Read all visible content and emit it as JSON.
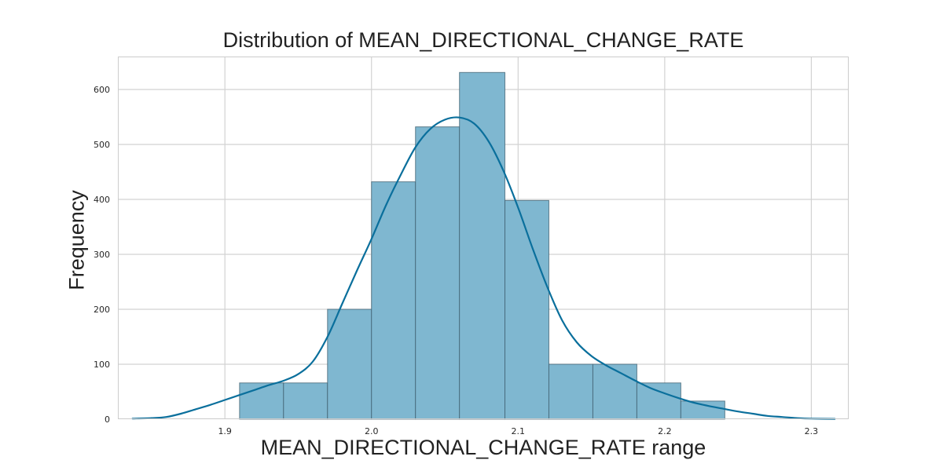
{
  "chart_data": {
    "type": "bar",
    "title": "Distribution of MEAN_DIRECTIONAL_CHANGE_RATE",
    "xlabel": "MEAN_DIRECTIONAL_CHANGE_RATE range",
    "ylabel": "Frequency",
    "xlim": [
      1.827,
      2.3255
    ],
    "ylim": [
      0,
      660
    ],
    "x_ticks": [
      1.9,
      2.0,
      2.1,
      2.2,
      2.3
    ],
    "x_tick_labels": [
      "1.9",
      "2.0",
      "2.1",
      "2.2",
      "2.3"
    ],
    "y_ticks": [
      0,
      100,
      200,
      300,
      400,
      500,
      600
    ],
    "y_tick_labels": [
      "0",
      "100",
      "200",
      "300",
      "400",
      "500",
      "600"
    ],
    "grid": true,
    "bins": [
      {
        "start": 1.91,
        "end": 1.94,
        "count": 66
      },
      {
        "start": 1.94,
        "end": 1.97,
        "count": 66
      },
      {
        "start": 1.97,
        "end": 2.0,
        "count": 200
      },
      {
        "start": 2.0,
        "end": 2.03,
        "count": 432
      },
      {
        "start": 2.03,
        "end": 2.06,
        "count": 532
      },
      {
        "start": 2.06,
        "end": 2.091,
        "count": 631
      },
      {
        "start": 2.091,
        "end": 2.121,
        "count": 398
      },
      {
        "start": 2.121,
        "end": 2.151,
        "count": 100
      },
      {
        "start": 2.151,
        "end": 2.181,
        "count": 100
      },
      {
        "start": 2.181,
        "end": 2.211,
        "count": 66
      },
      {
        "start": 2.211,
        "end": 2.241,
        "count": 33
      }
    ],
    "kde": {
      "x": [
        1.837,
        1.85,
        1.86,
        1.87,
        1.88,
        1.89,
        1.9,
        1.91,
        1.92,
        1.93,
        1.94,
        1.95,
        1.96,
        1.97,
        1.98,
        1.99,
        2.0,
        2.01,
        2.02,
        2.03,
        2.04,
        2.05,
        2.06,
        2.07,
        2.08,
        2.09,
        2.1,
        2.11,
        2.12,
        2.13,
        2.14,
        2.15,
        2.16,
        2.17,
        2.18,
        2.19,
        2.2,
        2.21,
        2.22,
        2.23,
        2.24,
        2.25,
        2.26,
        2.27,
        2.28,
        2.29,
        2.3,
        2.316
      ],
      "y": [
        1,
        2,
        4,
        10,
        18,
        26,
        35,
        44,
        53,
        62,
        70,
        82,
        105,
        150,
        210,
        270,
        328,
        390,
        445,
        495,
        528,
        545,
        549,
        538,
        505,
        452,
        385,
        310,
        240,
        180,
        140,
        115,
        98,
        84,
        70,
        57,
        47,
        38,
        30,
        24,
        19,
        14,
        10,
        6,
        4,
        2,
        1,
        0.5
      ]
    },
    "colors": {
      "bar_fill": "#7fb7d0",
      "bar_edge": "#3f5f6f",
      "kde_line": "#0a6f9c",
      "grid": "#d2d2d2",
      "frame": "#cccccc"
    }
  }
}
